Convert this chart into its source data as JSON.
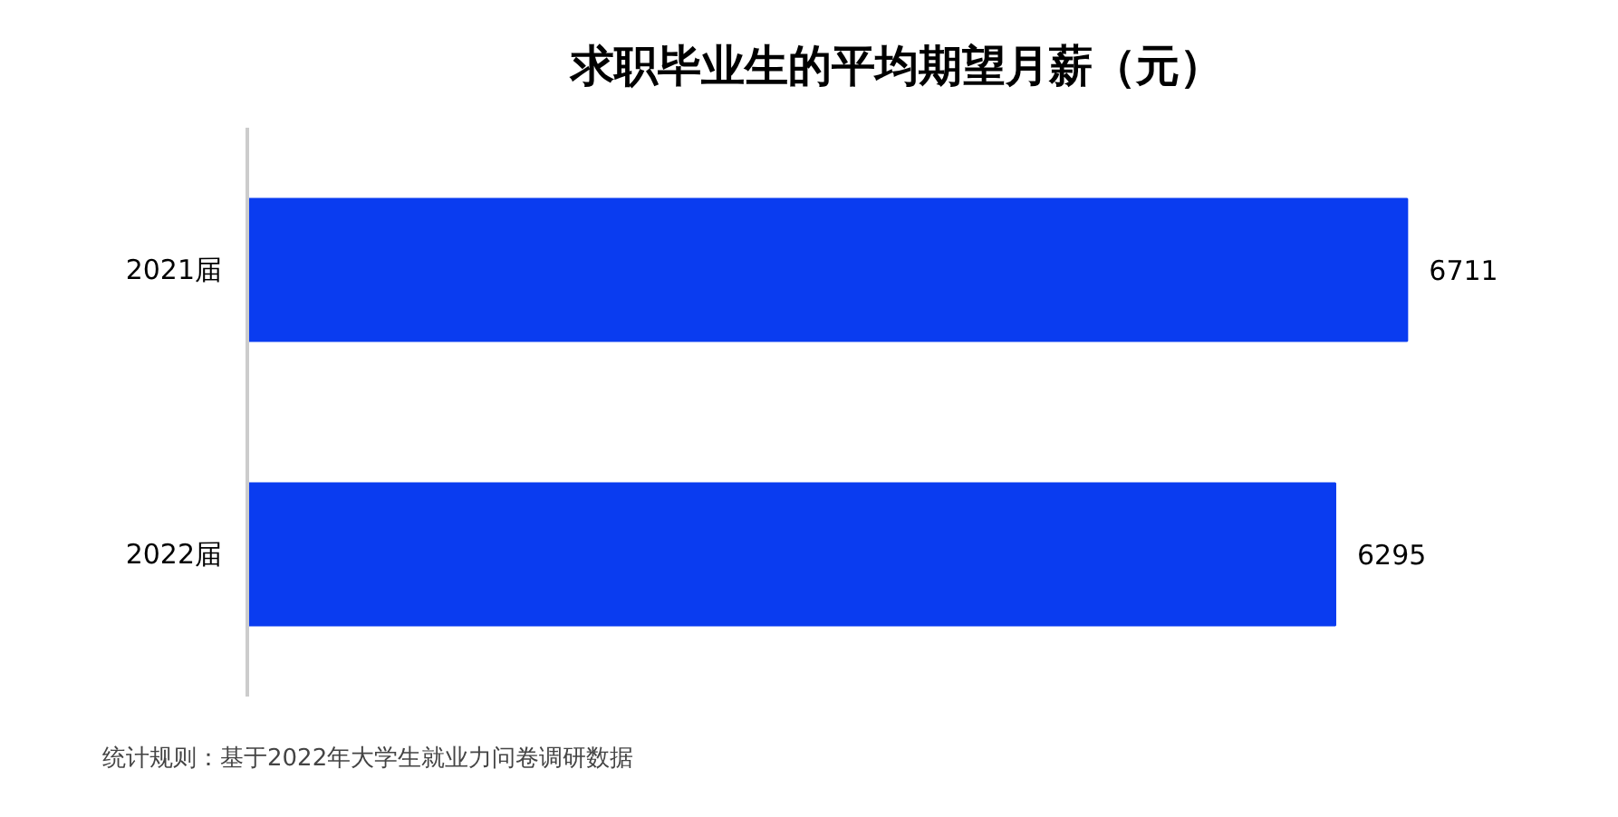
{
  "chart_data": {
    "type": "bar",
    "orientation": "horizontal",
    "title": "求职毕业生的平均期望月薪（元）",
    "categories": [
      "2021届",
      "2022届"
    ],
    "values": [
      6711,
      6295
    ],
    "color": "#0a3cf0",
    "data_labels": true,
    "annotations": [
      "统计规则：基于2022年大学生就业力问卷调研数据"
    ]
  }
}
